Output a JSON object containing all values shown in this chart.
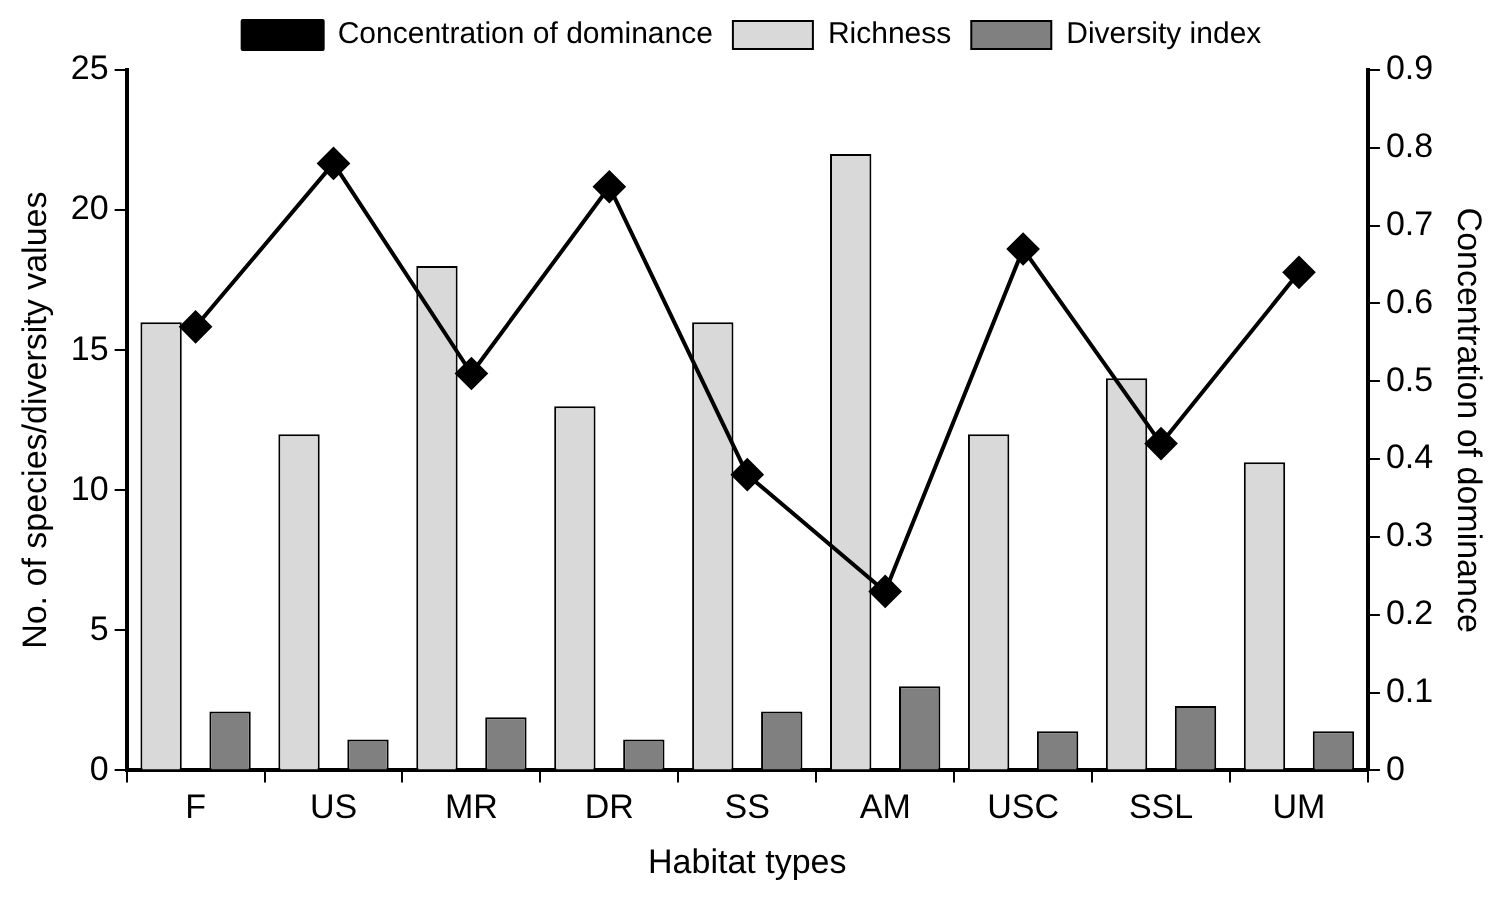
{
  "chart_data": {
    "type": "bar",
    "xlabel": "Habitat types",
    "ylabel": "No. of species/diversity values",
    "y2label": "Concentration of dominance",
    "categories": [
      "F",
      "US",
      "MR",
      "DR",
      "SS",
      "AM",
      "USC",
      "SSL",
      "UM"
    ],
    "series": [
      {
        "name": "Richness",
        "color": "#d9d9d9",
        "values": [
          16,
          12,
          18,
          13,
          16,
          22,
          12,
          14,
          11
        ]
      },
      {
        "name": "Diversity index",
        "color": "#808080",
        "values": [
          2.1,
          1.1,
          1.9,
          1.1,
          2.1,
          3.0,
          1.4,
          2.3,
          1.4
        ]
      },
      {
        "name": "Concentration of dominance",
        "type": "line",
        "axis": "y2",
        "color": "#000000",
        "marker": "diamond",
        "values": [
          0.57,
          0.78,
          0.51,
          0.75,
          0.38,
          0.23,
          0.67,
          0.42,
          0.64
        ]
      }
    ],
    "ylim": [
      0,
      25
    ],
    "yticks": [
      0,
      5,
      10,
      15,
      20,
      25
    ],
    "y2lim": [
      0,
      0.9
    ],
    "y2ticks": [
      0,
      0.1,
      0.2,
      0.3,
      0.4,
      0.5,
      0.6,
      0.7,
      0.8,
      0.9
    ],
    "grid": false,
    "legend": "top"
  }
}
